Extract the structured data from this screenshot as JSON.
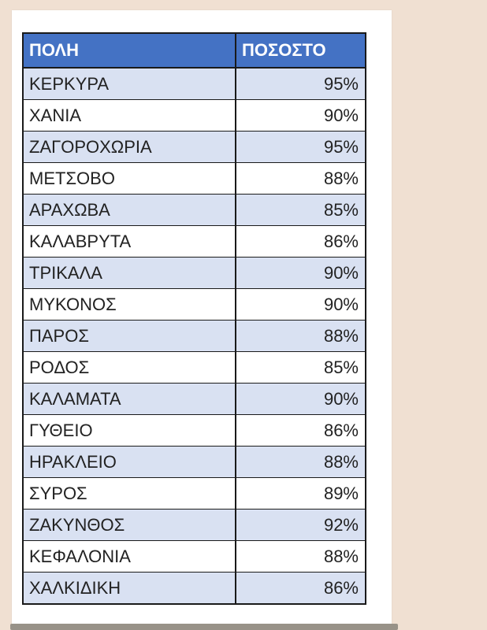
{
  "colors": {
    "background": "#f0e0d2",
    "card_bg": "#ffffff",
    "header_bg": "#4472c4",
    "header_text": "#ffffff",
    "row_alt_bg": "#d9e1f2",
    "row_bg": "#ffffff",
    "border": "#1a1a1a",
    "text": "#222222",
    "shadow": "#989288"
  },
  "table": {
    "columns": [
      "ΠΟΛΗ",
      "ΠΟΣΟΣΤΟ"
    ],
    "rows": [
      [
        "ΚΕΡΚΥΡΑ",
        "95%"
      ],
      [
        "ΧΑΝΙΑ",
        "90%"
      ],
      [
        "ΖΑΓΟΡΟΧΩΡΙΑ",
        "95%"
      ],
      [
        "ΜΕΤΣΟΒΟ",
        "88%"
      ],
      [
        "ΑΡΑΧΩΒΑ",
        "85%"
      ],
      [
        "ΚΑΛΑΒΡΥΤΑ",
        "86%"
      ],
      [
        "ΤΡΙΚΑΛΑ",
        "90%"
      ],
      [
        "ΜΥΚΟΝΟΣ",
        "90%"
      ],
      [
        "ΠΑΡΟΣ",
        "88%"
      ],
      [
        "ΡΟΔΟΣ",
        "85%"
      ],
      [
        "ΚΑΛΑΜΑΤΑ",
        "90%"
      ],
      [
        "ΓΥΘΕΙΟ",
        "86%"
      ],
      [
        "ΗΡΑΚΛΕΙΟ",
        "88%"
      ],
      [
        "ΣΥΡΟΣ",
        "89%"
      ],
      [
        "ΖΑΚΥΝΘΟΣ",
        "92%"
      ],
      [
        "ΚΕΦΑΛΟΝΙΑ",
        "88%"
      ],
      [
        "ΧΑΛΚΙΔΙΚΗ",
        "86%"
      ]
    ]
  },
  "chart_data": {
    "type": "table",
    "title": "",
    "columns": [
      "ΠΟΛΗ",
      "ΠΟΣΟΣΤΟ"
    ],
    "categories": [
      "ΚΕΡΚΥΡΑ",
      "ΧΑΝΙΑ",
      "ΖΑΓΟΡΟΧΩΡΙΑ",
      "ΜΕΤΣΟΒΟ",
      "ΑΡΑΧΩΒΑ",
      "ΚΑΛΑΒΡΥΤΑ",
      "ΤΡΙΚΑΛΑ",
      "ΜΥΚΟΝΟΣ",
      "ΠΑΡΟΣ",
      "ΡΟΔΟΣ",
      "ΚΑΛΑΜΑΤΑ",
      "ΓΥΘΕΙΟ",
      "ΗΡΑΚΛΕΙΟ",
      "ΣΥΡΟΣ",
      "ΖΑΚΥΝΘΟΣ",
      "ΚΕΦΑΛΟΝΙΑ",
      "ΧΑΛΚΙΔΙΚΗ"
    ],
    "values": [
      95,
      90,
      95,
      88,
      85,
      86,
      90,
      90,
      88,
      85,
      90,
      86,
      88,
      89,
      92,
      88,
      86
    ],
    "values_unit": "%"
  }
}
